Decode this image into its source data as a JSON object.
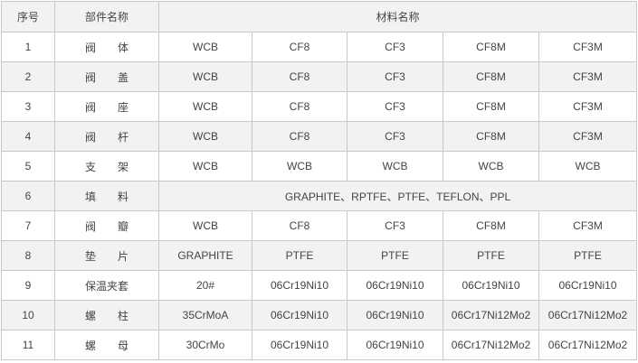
{
  "header": {
    "index": "序号",
    "part": "部件名称",
    "material": "材料名称"
  },
  "rows": [
    {
      "index": "1",
      "part": "阀　　体",
      "materials": [
        "WCB",
        "CF8",
        "CF3",
        "CF8M",
        "CF3M"
      ]
    },
    {
      "index": "2",
      "part": "阀　　盖",
      "materials": [
        "WCB",
        "CF8",
        "CF3",
        "CF8M",
        "CF3M"
      ]
    },
    {
      "index": "3",
      "part": "阀　　座",
      "materials": [
        "WCB",
        "CF8",
        "CF3",
        "CF8M",
        "CF3M"
      ]
    },
    {
      "index": "4",
      "part": "阀　　杆",
      "materials": [
        "WCB",
        "CF8",
        "CF3",
        "CF8M",
        "CF3M"
      ]
    },
    {
      "index": "5",
      "part": "支　　架",
      "materials": [
        "WCB",
        "WCB",
        "WCB",
        "WCB",
        "WCB"
      ]
    },
    {
      "index": "6",
      "part": "填　　料",
      "merged": "GRAPHITE、RPTFE、PTFE、TEFLON、PPL"
    },
    {
      "index": "7",
      "part": "阀　　瓣",
      "materials": [
        "WCB",
        "CF8",
        "CF3",
        "CF8M",
        "CF3M"
      ]
    },
    {
      "index": "8",
      "part": "垫　　片",
      "materials": [
        "GRAPHITE",
        "PTFE",
        "PTFE",
        "PTFE",
        "PTFE"
      ]
    },
    {
      "index": "9",
      "part": "保温夹套",
      "materials": [
        "20#",
        "06Cr19Ni10",
        "06Cr19Ni10",
        "06Cr19Ni10",
        "06Cr19Ni10"
      ]
    },
    {
      "index": "10",
      "part": "螺　　柱",
      "materials": [
        "35CrMoA",
        "06Cr19Ni10",
        "06Cr19Ni10",
        "06Cr17Ni12Mo2",
        "06Cr17Ni12Mo2"
      ]
    },
    {
      "index": "11",
      "part": "螺　　母",
      "materials": [
        "30CrMo",
        "06Cr19Ni10",
        "06Cr19Ni10",
        "06Cr17Ni12Mo2",
        "06Cr17Ni12Mo2"
      ]
    }
  ],
  "colors": {
    "border": "#c8c8c8",
    "shade": "#f2f2f2",
    "text": "#444444"
  }
}
